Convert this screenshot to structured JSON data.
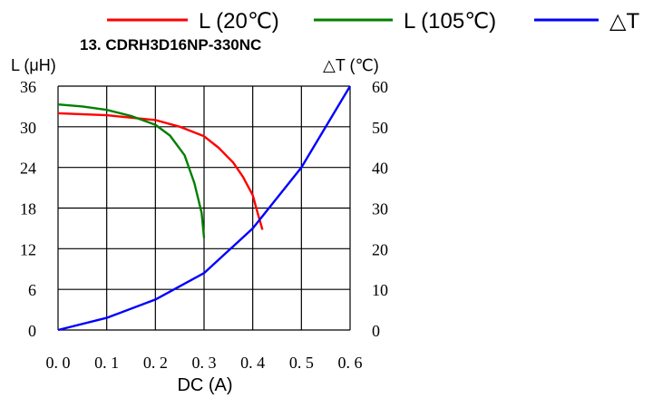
{
  "chart_data": {
    "type": "line",
    "title": "13. CDRH3D16NP-330NC",
    "xlabel": "DC (A)",
    "ylabel_left": "L (μH)",
    "ylabel_right": "△T (℃)",
    "xlim": [
      0,
      0.6
    ],
    "ylim_left": [
      0,
      36
    ],
    "ylim_right": [
      0,
      60
    ],
    "xticks": [
      "0.0",
      "0.1",
      "0.2",
      "0.3",
      "0.4",
      "0.5",
      "0.6"
    ],
    "yticks_left": [
      "0",
      "6",
      "12",
      "18",
      "24",
      "30",
      "36"
    ],
    "yticks_right": [
      "0",
      "10",
      "20",
      "30",
      "40",
      "50",
      "60"
    ],
    "grid": true,
    "legend_position": "top",
    "series": [
      {
        "name": "L (20℃)",
        "axis": "left",
        "color": "#ff0000",
        "points": [
          [
            0.0,
            32.0
          ],
          [
            0.1,
            31.7
          ],
          [
            0.2,
            31.0
          ],
          [
            0.25,
            30.0
          ],
          [
            0.3,
            28.6
          ],
          [
            0.33,
            26.9
          ],
          [
            0.36,
            24.7
          ],
          [
            0.38,
            22.6
          ],
          [
            0.4,
            19.9
          ],
          [
            0.41,
            17.3
          ],
          [
            0.42,
            14.8
          ]
        ]
      },
      {
        "name": "L (105℃)",
        "axis": "left",
        "color": "#008000",
        "points": [
          [
            0.0,
            33.3
          ],
          [
            0.05,
            33.0
          ],
          [
            0.1,
            32.5
          ],
          [
            0.15,
            31.6
          ],
          [
            0.2,
            30.3
          ],
          [
            0.23,
            28.7
          ],
          [
            0.26,
            25.8
          ],
          [
            0.28,
            21.7
          ],
          [
            0.295,
            17.3
          ],
          [
            0.3,
            13.6
          ]
        ]
      },
      {
        "name": "△T",
        "axis": "right",
        "color": "#0000ff",
        "points": [
          [
            0.0,
            0.0
          ],
          [
            0.1,
            3.0
          ],
          [
            0.2,
            7.5
          ],
          [
            0.3,
            14.0
          ],
          [
            0.4,
            25.0
          ],
          [
            0.5,
            40.0
          ],
          [
            0.6,
            60.0
          ]
        ]
      }
    ]
  }
}
